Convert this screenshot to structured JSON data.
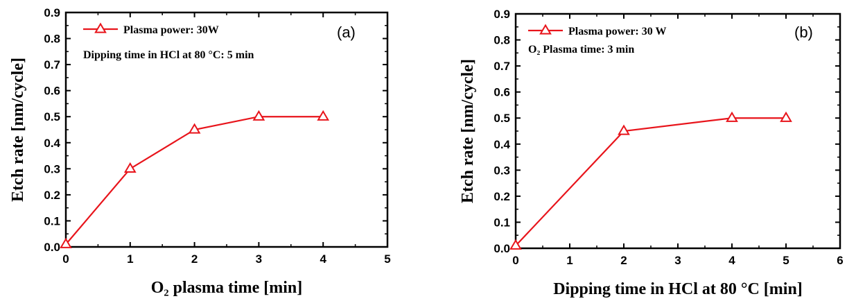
{
  "chart_data": [
    {
      "type": "line",
      "panel_label": "(a)",
      "xlabel": "O₂ plasma time [min]",
      "ylabel": "Etch rate [nm/cycle]",
      "xlim": [
        0,
        5
      ],
      "ylim": [
        0,
        0.9
      ],
      "xticks": [
        0,
        1,
        2,
        3,
        4,
        5
      ],
      "xtick_labels": [
        "0",
        "1",
        "2",
        "3",
        "4",
        "5"
      ],
      "yticks": [
        0,
        0.1,
        0.2,
        0.3,
        0.4,
        0.5,
        0.6,
        0.7,
        0.8,
        0.9
      ],
      "ytick_labels": [
        "0.0",
        "0.1",
        "0.2",
        "0.3",
        "0.4",
        "0.5",
        "0.6",
        "0.7",
        "0.8",
        "0.9"
      ],
      "grid": false,
      "legend_position": "top-left",
      "annotation": "Dipping time in HCl at 80 °C: 5 min",
      "series": [
        {
          "name": "Plasma power: 30W",
          "color": "#e8141b",
          "marker": "open-triangle",
          "x": [
            0,
            1,
            2,
            3,
            4
          ],
          "y": [
            0.01,
            0.3,
            0.45,
            0.5,
            0.5
          ]
        }
      ]
    },
    {
      "type": "line",
      "panel_label": "(b)",
      "xlabel": "Dipping time in HCl at 80 °C [min]",
      "ylabel": "Etch rate [nm/cycle]",
      "xlim": [
        0,
        6
      ],
      "ylim": [
        0,
        0.9
      ],
      "xticks": [
        0,
        1,
        2,
        3,
        4,
        5,
        6
      ],
      "xtick_labels": [
        "0",
        "1",
        "2",
        "3",
        "4",
        "5",
        "6"
      ],
      "yticks": [
        0,
        0.1,
        0.2,
        0.3,
        0.4,
        0.5,
        0.6,
        0.7,
        0.8,
        0.9
      ],
      "ytick_labels": [
        "0.0",
        "0.1",
        "0.2",
        "0.3",
        "0.4",
        "0.5",
        "0.6",
        "0.7",
        "0.8",
        "0.9"
      ],
      "grid": false,
      "legend_position": "top-left",
      "annotation": "O₂ Plasma time: 3 min",
      "series": [
        {
          "name": "Plasma power: 30 W",
          "color": "#e8141b",
          "marker": "open-triangle",
          "x": [
            0,
            2,
            4,
            5
          ],
          "y": [
            0.01,
            0.45,
            0.5,
            0.5
          ]
        }
      ]
    }
  ]
}
